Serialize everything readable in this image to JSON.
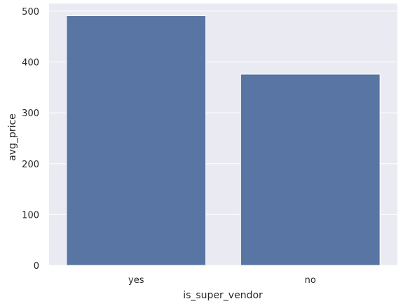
{
  "chart_data": {
    "type": "bar",
    "categories": [
      "yes",
      "no"
    ],
    "values": [
      491,
      376
    ],
    "xlabel": "is_super_vendor",
    "ylabel": "avg_price",
    "ylim": [
      0,
      515
    ],
    "yticks": [
      0,
      100,
      200,
      300,
      400,
      500
    ],
    "grid": true,
    "colors": {
      "bar": "#5875a4",
      "plot_background": "#eaeaf2",
      "grid": "#ffffff",
      "text": "#262626"
    }
  }
}
